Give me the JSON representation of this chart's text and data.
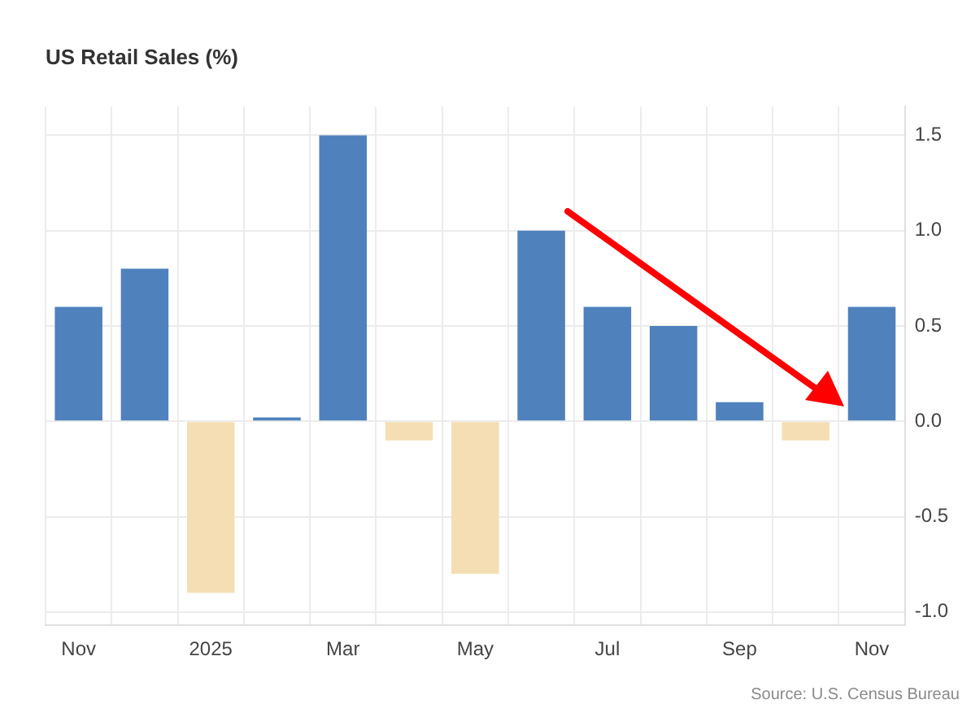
{
  "chart_data": {
    "type": "bar",
    "title": "US Retail Sales (%)",
    "categories": [
      "Nov",
      null,
      "2025",
      null,
      "Mar",
      null,
      "May",
      null,
      "Jul",
      null,
      "Sep",
      null,
      "Nov"
    ],
    "values": [
      0.6,
      0.8,
      -0.9,
      0.02,
      1.5,
      -0.1,
      -0.8,
      1.0,
      0.6,
      0.5,
      0.1,
      -0.1,
      0.6
    ],
    "colors": [
      "#4f81bd",
      "#4f81bd",
      "#f5deb3",
      "#4f81bd",
      "#4f81bd",
      "#f5deb3",
      "#f5deb3",
      "#4f81bd",
      "#4f81bd",
      "#4f81bd",
      "#4f81bd",
      "#f5deb3",
      "#4f81bd"
    ],
    "ylim": [
      -1.07,
      1.65
    ],
    "yticks": [
      {
        "value": 1.5,
        "label": "1.5"
      },
      {
        "value": 1,
        "label": "1.0"
      },
      {
        "value": 0.5,
        "label": "0.5"
      },
      {
        "value": 0,
        "label": "0.0"
      },
      {
        "value": -0.5,
        "label": "-0.5"
      },
      {
        "value": -1,
        "label": "-1.0"
      }
    ],
    "grid": true,
    "legend": false,
    "annotations": [
      "Source: U.S. Census Bureau"
    ]
  }
}
